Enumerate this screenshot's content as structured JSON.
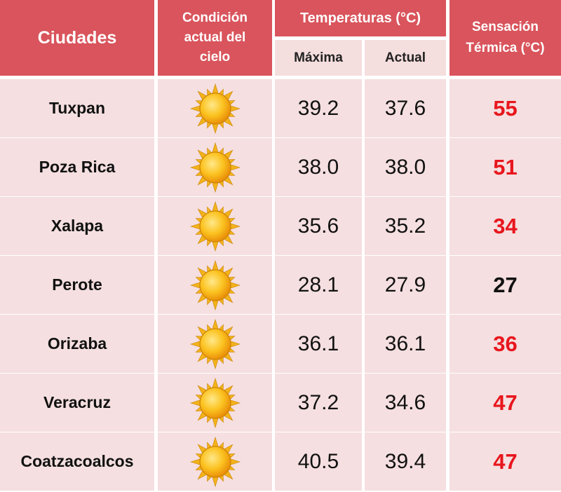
{
  "header": {
    "cities": "Ciudades",
    "sky_line1": "Condición",
    "sky_line2": "actual del",
    "sky_line3": "cielo",
    "temps": "Temperaturas (°C)",
    "max": "Máxima",
    "current": "Actual",
    "feel_line1": "Sensación",
    "feel_line2": "Térmica (°C)"
  },
  "colors": {
    "header_bg": "#d9545c",
    "row_bg": "#f5dfe0",
    "hot": "#e8161d",
    "normal": "#111111",
    "sun": "sun-icon"
  },
  "chart_data": {
    "type": "table",
    "columns": [
      "Ciudades",
      "Condición actual del cielo",
      "Máxima",
      "Actual",
      "Sensación Térmica (°C)"
    ],
    "rows": [
      {
        "city": "Tuxpan",
        "sky": "sun-icon",
        "max": "39.2",
        "current": "37.6",
        "feel": "55",
        "hot": true
      },
      {
        "city": "Poza Rica",
        "sky": "sun-icon",
        "max": "38.0",
        "current": "38.0",
        "feel": "51",
        "hot": true
      },
      {
        "city": "Xalapa",
        "sky": "sun-icon",
        "max": "35.6",
        "current": "35.2",
        "feel": "34",
        "hot": true
      },
      {
        "city": "Perote",
        "sky": "sun-icon",
        "max": "28.1",
        "current": "27.9",
        "feel": "27",
        "hot": false
      },
      {
        "city": "Orizaba",
        "sky": "sun-icon",
        "max": "36.1",
        "current": "36.1",
        "feel": "36",
        "hot": true
      },
      {
        "city": "Veracruz",
        "sky": "sun-icon",
        "max": "37.2",
        "current": "34.6",
        "feel": "47",
        "hot": true
      },
      {
        "city": "Coatzacoalcos",
        "sky": "sun-icon",
        "max": "40.5",
        "current": "39.4",
        "feel": "47",
        "hot": true
      }
    ]
  }
}
